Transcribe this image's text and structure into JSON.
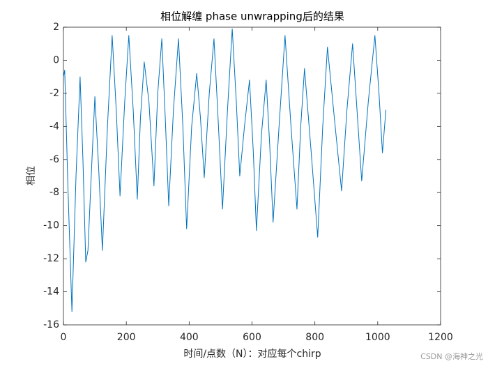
{
  "chart_data": {
    "type": "line",
    "title": "相位解缠  phase unwrapping后的结果",
    "xlabel": "时间/点数（N）：对应每个chirp",
    "ylabel": "相位",
    "watermark": "CSDN @海神之光",
    "x": [
      0,
      4,
      14,
      27,
      40,
      53,
      62,
      71,
      78,
      86,
      100,
      112,
      124,
      140,
      155,
      168,
      180,
      195,
      208,
      222,
      235,
      245,
      257,
      272,
      288,
      300,
      313,
      324,
      335,
      350,
      366,
      380,
      392,
      408,
      424,
      436,
      448,
      464,
      479,
      492,
      506,
      522,
      537,
      550,
      561,
      576,
      592,
      604,
      614,
      630,
      645,
      656,
      667,
      686,
      705,
      724,
      743,
      755,
      767,
      788,
      809,
      825,
      840,
      862,
      885,
      902,
      920,
      934,
      949,
      970,
      991,
      1004,
      1015,
      1026
    ],
    "series": [
      {
        "name": "phase",
        "color": "#0072bd",
        "values": [
          -1.0,
          -0.6,
          -7.5,
          -15.2,
          -7.0,
          -1.0,
          -6.0,
          -12.2,
          -11.5,
          -8.0,
          -2.2,
          -6.5,
          -11.5,
          -4.0,
          1.5,
          -3.0,
          -8.2,
          -2.5,
          1.5,
          -3.0,
          -8.4,
          -3.5,
          -0.1,
          -2.5,
          -7.6,
          -2.0,
          1.3,
          -3.5,
          -8.8,
          -3.0,
          1.3,
          -4.0,
          -10.2,
          -4.0,
          -0.8,
          -3.5,
          -7.1,
          -2.0,
          1.3,
          -3.5,
          -9.0,
          -3.0,
          1.9,
          -2.5,
          -7.0,
          -4.0,
          -1.2,
          -5.5,
          -10.3,
          -4.5,
          -1.2,
          -5.0,
          -9.8,
          -4.0,
          1.5,
          -4.0,
          -9.0,
          -4.0,
          -0.5,
          -5.5,
          -10.7,
          -4.0,
          0.8,
          -3.5,
          -7.9,
          -3.0,
          1.0,
          -3.0,
          -7.3,
          -2.5,
          1.5,
          -2.0,
          -5.6,
          -3.0
        ]
      }
    ],
    "xlim": [
      0,
      1200
    ],
    "xticks": [
      0,
      200,
      400,
      600,
      800,
      1000,
      1200
    ],
    "ylim": [
      -16,
      2
    ],
    "yticks": [
      -16,
      -14,
      -12,
      -10,
      -8,
      -6,
      -4,
      -2,
      0,
      2
    ]
  }
}
